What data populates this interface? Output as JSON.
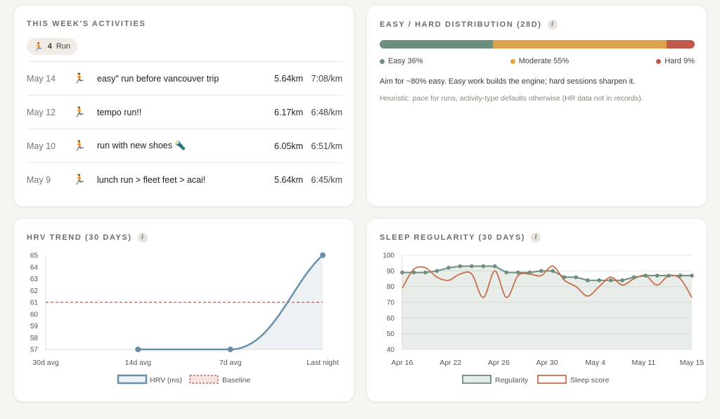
{
  "activities": {
    "title": "THIS WEEK'S ACTIVITIES",
    "chip": {
      "icon": "runner-icon",
      "count": "4",
      "label": "Run"
    },
    "rows": [
      {
        "date": "May 14",
        "icon": "runner-icon",
        "name": "easy\" run before vancouver trip",
        "distance": "5.64km",
        "pace": "7:08/km"
      },
      {
        "date": "May 12",
        "icon": "runner-icon",
        "name": "tempo run!!",
        "distance": "6.17km",
        "pace": "6:48/km"
      },
      {
        "date": "May 10",
        "icon": "runner-icon",
        "name": "run with new shoes 🔦",
        "distance": "6.05km",
        "pace": "6:51/km"
      },
      {
        "date": "May 9",
        "icon": "runner-icon",
        "name": "lunch run > fleet feet > acai!",
        "distance": "5.64km",
        "pace": "6:45/km"
      }
    ]
  },
  "distribution": {
    "title": "EASY / HARD DISTRIBUTION (28D)",
    "segments": [
      {
        "label": "Easy 36%",
        "value": 36,
        "color": "#6e8f7d"
      },
      {
        "label": "Moderate 55%",
        "value": 55,
        "color": "#dda24a"
      },
      {
        "label": "Hard 9%",
        "value": 9,
        "color": "#c05b4c"
      }
    ],
    "text": "Aim for ~80% easy. Easy work builds the engine; hard sessions sharpen it.",
    "note": "Heuristic: pace for runs, activity-type defaults otherwise (HR data not in records)."
  },
  "hrv": {
    "title": "HRV TREND (30 DAYS)",
    "chart_data": {
      "type": "line",
      "categories": [
        "30d avg",
        "14d avg",
        "7d avg",
        "Last night"
      ],
      "series": [
        {
          "name": "HRV (ms)",
          "values": [
            null,
            57,
            57,
            65
          ],
          "color": "#6a8fa8"
        },
        {
          "name": "Baseline",
          "values": [
            61,
            61,
            61,
            61
          ],
          "color": "#c0584a"
        }
      ],
      "yticks": [
        57,
        58,
        59,
        60,
        61,
        62,
        63,
        64,
        65
      ],
      "ylim": [
        57,
        65
      ],
      "grid": false,
      "legend": "bottom"
    }
  },
  "sleep": {
    "title": "SLEEP REGULARITY (30 DAYS)",
    "chart_data": {
      "type": "line",
      "x_ticks": [
        "Apr 16",
        "Apr 22",
        "Apr 26",
        "Apr 30",
        "May 4",
        "May 11",
        "May 15"
      ],
      "series": [
        {
          "name": "Regularity",
          "values": [
            89,
            89,
            89,
            90,
            92,
            93,
            93,
            93,
            93,
            89,
            89,
            89,
            90,
            90,
            86,
            86,
            84,
            84,
            84,
            84,
            86,
            87,
            87,
            87,
            87,
            87
          ],
          "color": "#6e8f7d"
        },
        {
          "name": "Sleep score",
          "values": [
            79,
            91,
            92,
            86,
            84,
            88,
            88,
            73,
            90,
            73,
            87,
            88,
            87,
            93,
            84,
            80,
            74,
            80,
            86,
            81,
            85,
            87,
            81,
            87,
            85,
            73
          ],
          "color": "#c96f4e"
        }
      ],
      "yticks": [
        40,
        50,
        60,
        70,
        80,
        90,
        100
      ],
      "ylim": [
        40,
        100
      ],
      "grid": true,
      "legend": "bottom"
    }
  }
}
